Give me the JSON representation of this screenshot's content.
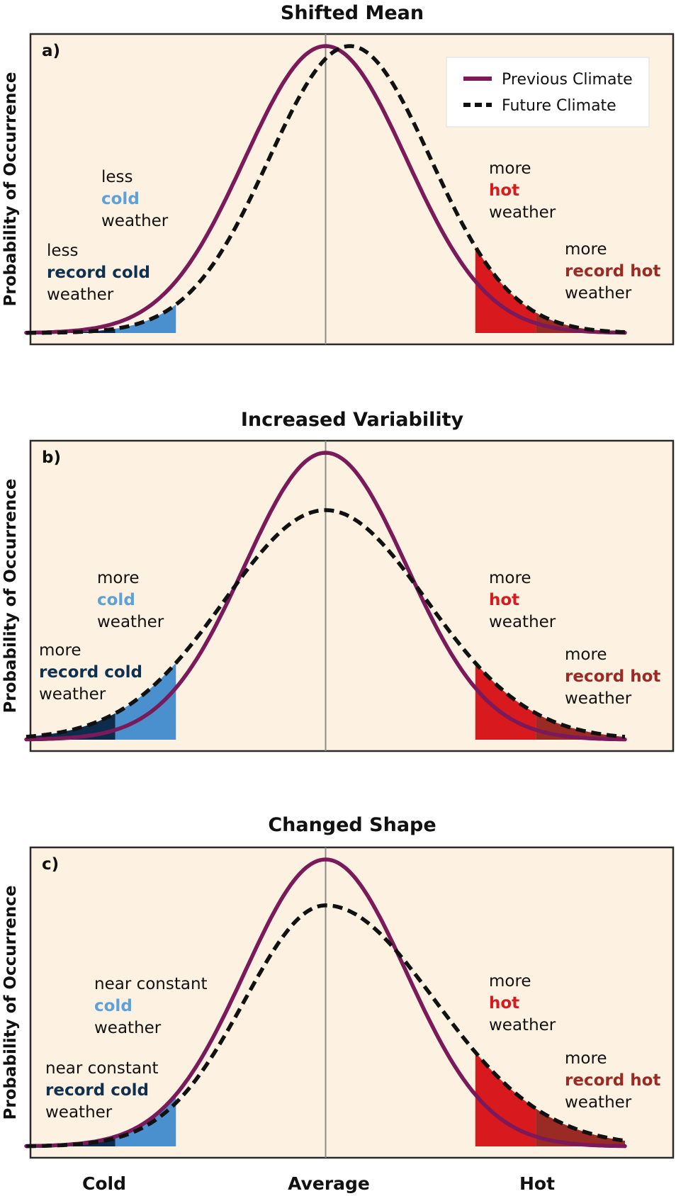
{
  "chart_data": [
    {
      "type": "line",
      "panel": "a)",
      "title": "Shifted Mean",
      "ylabel": "Probability of Occurrence",
      "series": [
        {
          "name": "Previous Climate",
          "mean": 0.0,
          "sd": 1.0,
          "peak": 1.0,
          "color": "#7b1a5a",
          "style": "solid"
        },
        {
          "name": "Future Climate",
          "mean": 0.3,
          "sd": 1.0,
          "peak": 1.0,
          "color": "#111111",
          "style": "dashed"
        }
      ],
      "cold_threshold": -1.85,
      "record_cold_threshold": -2.6,
      "hot_threshold": 1.85,
      "record_hot_threshold": 2.6,
      "annotations": [
        {
          "lines": [
            [
              "less",
              ""
            ],
            [
              "cold",
              "cold"
            ],
            [
              "weather",
              ""
            ]
          ]
        },
        {
          "lines": [
            [
              "less",
              ""
            ],
            [
              "record cold",
              "rcold"
            ],
            [
              "weather",
              ""
            ]
          ]
        },
        {
          "lines": [
            [
              "more",
              ""
            ],
            [
              "hot",
              "hot"
            ],
            [
              "weather",
              ""
            ]
          ]
        },
        {
          "lines": [
            [
              "more",
              ""
            ],
            [
              "record hot",
              "rhot"
            ],
            [
              "weather",
              ""
            ]
          ]
        }
      ]
    },
    {
      "type": "line",
      "panel": "b)",
      "title": "Increased Variability",
      "ylabel": "Probability of Occurrence",
      "series": [
        {
          "name": "Previous Climate",
          "mean": 0.0,
          "sd": 1.0,
          "peak": 1.0,
          "color": "#7b1a5a",
          "style": "solid"
        },
        {
          "name": "Future Climate",
          "mean": 0.0,
          "sd": 1.25,
          "peak": 0.8,
          "color": "#111111",
          "style": "dashed"
        }
      ],
      "cold_threshold": -1.85,
      "record_cold_threshold": -2.6,
      "hot_threshold": 1.85,
      "record_hot_threshold": 2.6,
      "annotations": [
        {
          "lines": [
            [
              "more",
              ""
            ],
            [
              "cold",
              "cold"
            ],
            [
              "weather",
              ""
            ]
          ]
        },
        {
          "lines": [
            [
              "more",
              ""
            ],
            [
              "record cold",
              "rcold"
            ],
            [
              "weather",
              ""
            ]
          ]
        },
        {
          "lines": [
            [
              "more",
              ""
            ],
            [
              "hot",
              "hot"
            ],
            [
              "weather",
              ""
            ]
          ]
        },
        {
          "lines": [
            [
              "more",
              ""
            ],
            [
              "record hot",
              "rhot"
            ],
            [
              "weather",
              ""
            ]
          ]
        }
      ]
    },
    {
      "type": "line",
      "panel": "c)",
      "title": "Changed Shape",
      "ylabel": "Probability of Occurrence",
      "series": [
        {
          "name": "Previous Climate",
          "mean": 0.0,
          "sd": 1.0,
          "peak": 1.0,
          "color": "#7b1a5a",
          "style": "solid"
        },
        {
          "name": "Future Climate",
          "mean": 0.0,
          "sd_left": 1.0,
          "sd_right": 1.35,
          "peak": 0.84,
          "color": "#111111",
          "style": "dashed"
        }
      ],
      "cold_threshold": -1.85,
      "record_cold_threshold": -2.6,
      "hot_threshold": 1.85,
      "record_hot_threshold": 2.6,
      "annotations": [
        {
          "lines": [
            [
              "near constant",
              ""
            ],
            [
              "cold",
              "cold"
            ],
            [
              "weather",
              ""
            ]
          ]
        },
        {
          "lines": [
            [
              "near constant",
              ""
            ],
            [
              "record cold",
              "rcold"
            ],
            [
              "weather",
              ""
            ]
          ]
        },
        {
          "lines": [
            [
              "more",
              ""
            ],
            [
              "hot",
              "hot"
            ],
            [
              "weather",
              ""
            ]
          ]
        },
        {
          "lines": [
            [
              "more",
              ""
            ],
            [
              "record hot",
              "rhot"
            ],
            [
              "weather",
              ""
            ]
          ]
        }
      ]
    }
  ],
  "x_axis_labels": [
    "Cold",
    "Average",
    "Hot"
  ],
  "legend": [
    {
      "name": "Previous Climate",
      "style": "solid",
      "color": "#7b1a5a"
    },
    {
      "name": "Future Climate",
      "style": "dashed",
      "color": "#111111"
    }
  ],
  "colors": {
    "panel_bg": "#fdf2e1",
    "cold": "#4a8fce",
    "record_cold": "#0d2c4d",
    "hot": "#d8191e",
    "record_hot": "#9a2a24"
  }
}
